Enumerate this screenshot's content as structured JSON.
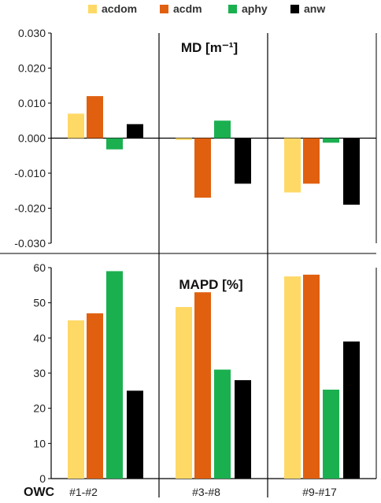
{
  "legend": [
    {
      "label": "acdom",
      "color": "#FFD966"
    },
    {
      "label": "acdm",
      "color": "#E06010"
    },
    {
      "label": "aphy",
      "color": "#1BB04F"
    },
    {
      "label": "anw",
      "color": "#000000"
    }
  ],
  "xlabel": "OWC",
  "chart_data": [
    {
      "type": "bar",
      "title": "MD [m⁻¹]",
      "categories": [
        "#1-#2",
        "#3-#8",
        "#9-#17"
      ],
      "series": [
        {
          "name": "acdom",
          "values": [
            0.007,
            -0.0005,
            -0.0155
          ]
        },
        {
          "name": "acdm",
          "values": [
            0.012,
            -0.017,
            -0.013
          ]
        },
        {
          "name": "aphy",
          "values": [
            -0.0032,
            0.005,
            -0.0013
          ]
        },
        {
          "name": "anw",
          "values": [
            0.004,
            -0.013,
            -0.019
          ]
        }
      ],
      "ylim": [
        -0.03,
        0.03
      ],
      "yticks": [
        "0.030",
        "0.020",
        "0.010",
        "0.000",
        "-0.010",
        "-0.020",
        "-0.030"
      ],
      "grid": false
    },
    {
      "type": "bar",
      "title": "MAPD [%]",
      "categories": [
        "#1-#2",
        "#3-#8",
        "#9-#17"
      ],
      "series": [
        {
          "name": "acdom",
          "values": [
            45,
            48.8,
            57.5
          ]
        },
        {
          "name": "acdm",
          "values": [
            47,
            53,
            58
          ]
        },
        {
          "name": "aphy",
          "values": [
            59,
            31,
            25.3
          ]
        },
        {
          "name": "anw",
          "values": [
            25,
            28,
            39
          ]
        }
      ],
      "ylim": [
        0,
        60
      ],
      "yticks": [
        "60",
        "50",
        "40",
        "30",
        "20",
        "10",
        "0"
      ],
      "grid": false
    }
  ]
}
